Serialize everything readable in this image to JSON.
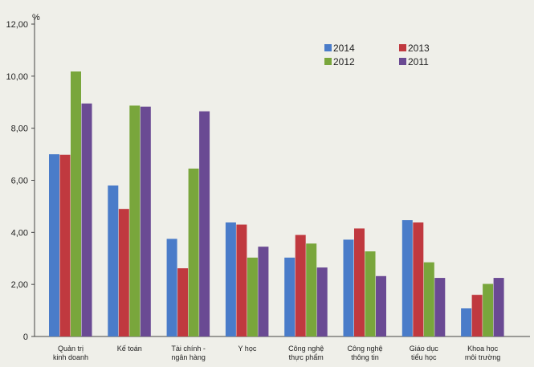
{
  "chart_data": {
    "type": "bar",
    "unit": "%",
    "ylim": [
      0,
      12
    ],
    "ytick_values": [
      0,
      2,
      4,
      6,
      8,
      10,
      12
    ],
    "ytick_labels": [
      "0",
      "2,00",
      "4,00",
      "6,00",
      "8,00",
      "10,00",
      "12,00"
    ],
    "grid": false,
    "legend_position": "top-right",
    "categories": [
      [
        "Quản trị",
        "kinh doanh"
      ],
      [
        "Kế toán"
      ],
      [
        "Tài chính -",
        "ngân hàng"
      ],
      [
        "Y học"
      ],
      [
        "Công nghệ",
        "thực phẩm"
      ],
      [
        "Công nghệ",
        "thông tin"
      ],
      [
        "Giáo dục",
        "tiểu học"
      ],
      [
        "Khoa học",
        "môi trường"
      ]
    ],
    "series": [
      {
        "name": "2014",
        "color": "#4a7cc9",
        "values": [
          7.0,
          5.8,
          3.75,
          4.38,
          3.03,
          3.72,
          4.47,
          1.08
        ]
      },
      {
        "name": "2013",
        "color": "#c0393f",
        "values": [
          6.98,
          4.9,
          2.62,
          4.3,
          3.9,
          4.15,
          4.38,
          1.6
        ]
      },
      {
        "name": "2012",
        "color": "#79a63c",
        "values": [
          10.18,
          8.87,
          6.45,
          3.03,
          3.57,
          3.27,
          2.85,
          2.02
        ]
      },
      {
        "name": "2011",
        "color": "#6a4a93",
        "values": [
          8.95,
          8.83,
          8.65,
          3.45,
          2.65,
          2.32,
          2.25,
          2.25
        ]
      }
    ]
  }
}
